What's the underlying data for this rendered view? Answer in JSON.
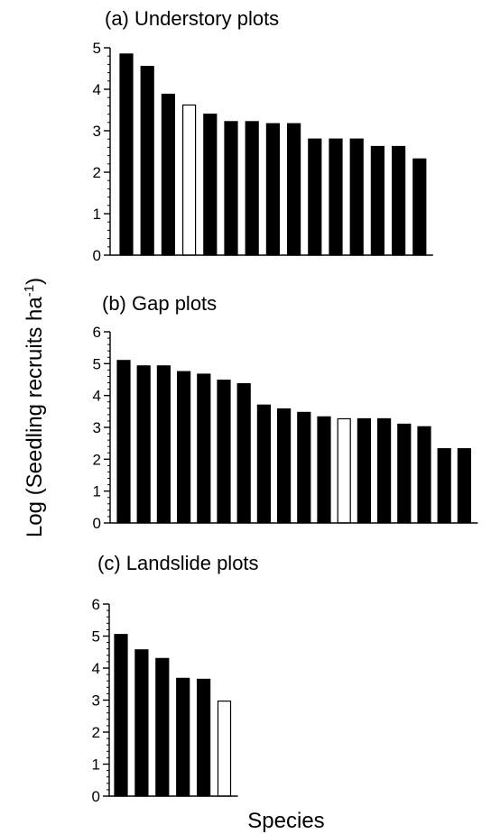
{
  "figure": {
    "ylabel_main": "Log (Seedling recruits ha",
    "ylabel_exp": "-1",
    "ylabel_close": ")",
    "xlabel": "Species"
  },
  "chart_data": [
    {
      "type": "bar",
      "title": "(a) Understory plots",
      "ylim": [
        0,
        5
      ],
      "yticks": [
        "0",
        "1",
        "2",
        "3",
        "4",
        "5"
      ],
      "values": [
        4.85,
        4.55,
        3.88,
        3.62,
        3.4,
        3.22,
        3.22,
        3.17,
        3.17,
        2.8,
        2.8,
        2.8,
        2.62,
        2.62,
        2.32
      ],
      "fill": [
        "#000000",
        "#000000",
        "#000000",
        "#ffffff",
        "#000000",
        "#000000",
        "#000000",
        "#000000",
        "#000000",
        "#000000",
        "#000000",
        "#000000",
        "#000000",
        "#000000",
        "#000000"
      ]
    },
    {
      "type": "bar",
      "title": "(b) Gap plots",
      "ylim": [
        0,
        6
      ],
      "yticks": [
        "0",
        "1",
        "2",
        "3",
        "4",
        "5",
        "6"
      ],
      "values": [
        5.1,
        4.93,
        4.93,
        4.75,
        4.67,
        4.48,
        4.37,
        3.7,
        3.58,
        3.47,
        3.33,
        3.27,
        3.27,
        3.27,
        3.1,
        3.02,
        2.33,
        2.33
      ],
      "fill": [
        "#000000",
        "#000000",
        "#000000",
        "#000000",
        "#000000",
        "#000000",
        "#000000",
        "#000000",
        "#000000",
        "#000000",
        "#000000",
        "#ffffff",
        "#000000",
        "#000000",
        "#000000",
        "#000000",
        "#000000",
        "#000000"
      ]
    },
    {
      "type": "bar",
      "title": "(c) Landslide plots",
      "ylim": [
        0,
        6
      ],
      "yticks": [
        "0",
        "1",
        "2",
        "3",
        "4",
        "5",
        "6"
      ],
      "values": [
        5.05,
        4.57,
        4.3,
        3.68,
        3.65,
        2.97
      ],
      "fill": [
        "#000000",
        "#000000",
        "#000000",
        "#000000",
        "#000000",
        "#ffffff"
      ]
    }
  ]
}
